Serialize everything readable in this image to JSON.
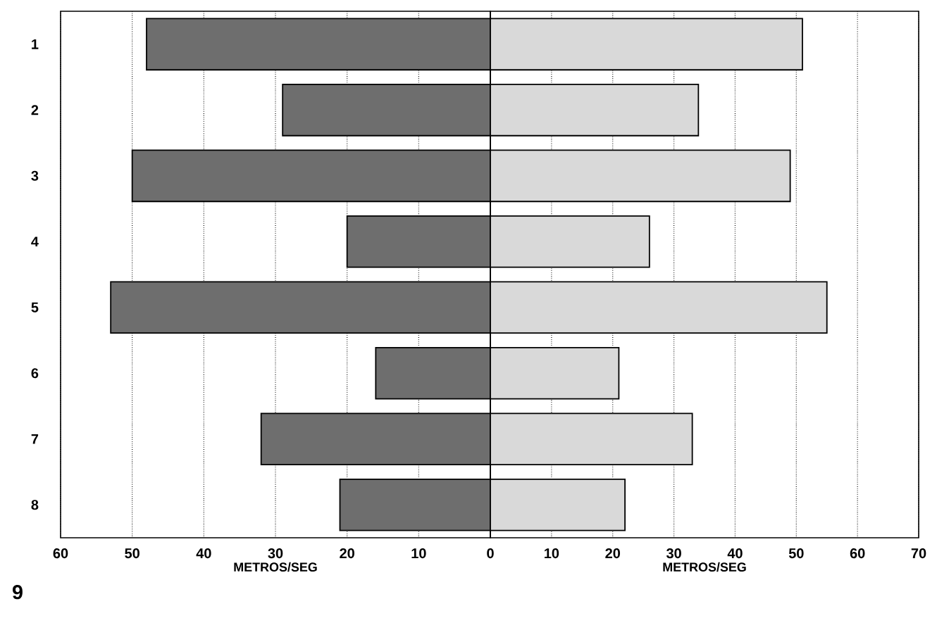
{
  "chart_data": [
    {
      "type": "bar",
      "orientation": "horizontal",
      "categories": [
        "1",
        "2",
        "3",
        "4",
        "5",
        "6",
        "7",
        "8"
      ],
      "values": [
        48,
        29,
        50,
        20,
        53,
        16,
        32,
        21
      ],
      "color": "#6e6e6e",
      "xlim": [
        60,
        0
      ],
      "xticks": [
        60,
        50,
        40,
        30,
        20,
        10
      ],
      "xlabel": "METROS/SEG",
      "grid": "x",
      "annotations": [
        "9"
      ]
    },
    {
      "type": "bar",
      "orientation": "horizontal",
      "categories": [
        "1",
        "2",
        "3",
        "4",
        "5",
        "6",
        "7",
        "8"
      ],
      "values": [
        51,
        34,
        49,
        26,
        55,
        21,
        33,
        22
      ],
      "color": "#d9d9d9",
      "xlim": [
        0,
        70
      ],
      "xticks": [
        0,
        10,
        20,
        30,
        40,
        50,
        60,
        70
      ],
      "xlabel": "METROS/SEG",
      "grid": "x",
      "tick_labels": "x"
    }
  ]
}
